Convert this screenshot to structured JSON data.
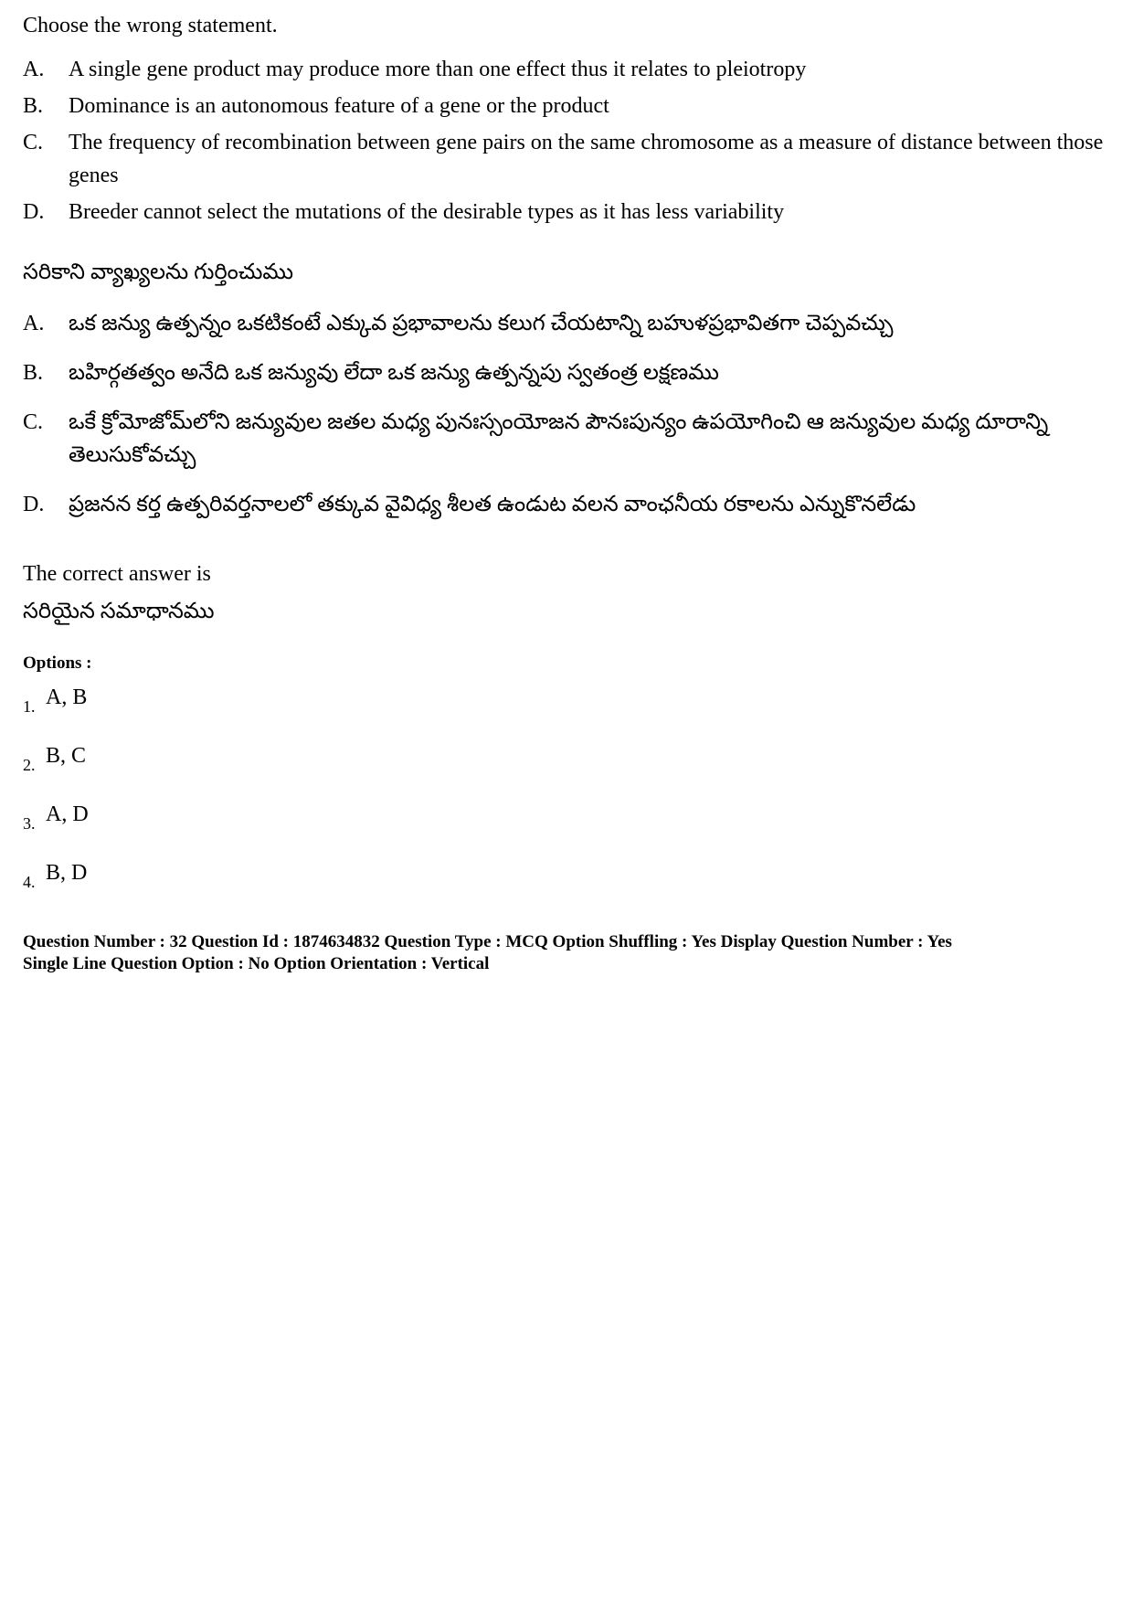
{
  "question_en": "Choose the wrong statement.",
  "statements_en": [
    {
      "letter": "A.",
      "text": "A single gene product may produce more than one effect thus it relates to pleiotropy"
    },
    {
      "letter": "B.",
      "text": "Dominance is an autonomous feature of a gene or the product"
    },
    {
      "letter": "C.",
      "text": "The frequency of recombination between gene pairs on the same chromosome as a measure of distance between those genes"
    },
    {
      "letter": "D.",
      "text": "Breeder cannot select the mutations of the desirable types as it has less variability"
    }
  ],
  "question_te": "సరికాని వ్యాఖ్యలను గుర్తించుము",
  "statements_te": [
    {
      "letter": "A.",
      "text": "ఒక జన్యు ఉత్పన్నం ఒకటికంటే ఎక్కువ ప్రభావాలను కలుగ చేయటాన్ని బహుళప్రభావితగా చెప్పవచ్చు"
    },
    {
      "letter": "B.",
      "text": "బహిర్గతత్వం అనేది ఒక జన్యువు లేదా ఒక జన్యు ఉత్పన్నపు స్వతంత్ర లక్షణము"
    },
    {
      "letter": "C.",
      "text": "ఒకే క్రోమోజోమ్‌లోని జన్యువుల జతల మధ్య పునఃస్సంయోజన పౌనఃపున్యం ఉపయోగించి ఆ జన్యువుల మధ్య దూరాన్ని తెలుసుకోవచ్చు"
    },
    {
      "letter": "D.",
      "text": "ప్రజనన కర్త ఉత్పరివర్తనాలలో తక్కువ వైవిధ్య శీలత ఉండుట వలన వాంఛనీయ రకాలను ఎన్నుకొనలేడు"
    }
  ],
  "answer_label_en": "The correct answer is",
  "answer_label_te": "సరియైన సమాధానము",
  "options_label": "Options :",
  "options": [
    {
      "num": "1.",
      "text": "A, B"
    },
    {
      "num": "2.",
      "text": "B, C"
    },
    {
      "num": "3.",
      "text": "A, D"
    },
    {
      "num": "4.",
      "text": "B, D"
    }
  ],
  "meta_line1": "Question Number : 32  Question Id : 1874634832  Question Type : MCQ  Option Shuffling : Yes  Display Question Number : Yes",
  "meta_line2": "Single Line Question Option : No  Option Orientation : Vertical"
}
